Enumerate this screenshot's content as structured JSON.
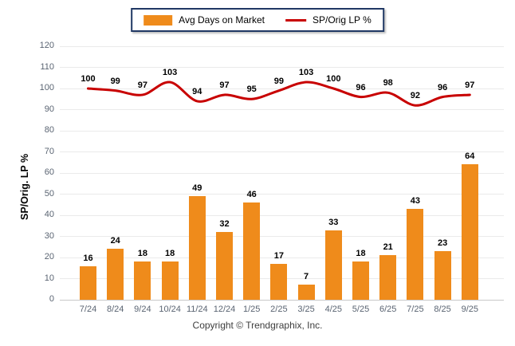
{
  "legend": {
    "bar_label": "Avg Days on Market",
    "line_label": "SP/Orig LP %"
  },
  "y_axis": {
    "title": "SP/Orig. LP %",
    "ticks": [
      0,
      10,
      20,
      30,
      40,
      50,
      60,
      70,
      80,
      90,
      100,
      110,
      120
    ]
  },
  "footer": {
    "copyright": "Copyright © Trendgraphix, Inc."
  },
  "colors": {
    "bar": "#EF8B1B",
    "line": "#C80000",
    "grid": "#EAEAEA",
    "zero_axis": "#C9C9C9",
    "tick_text": "#5A6472",
    "legend_border": "#203864"
  },
  "chart_data": {
    "type": "bar",
    "categories": [
      "7/24",
      "8/24",
      "9/24",
      "10/24",
      "11/24",
      "12/24",
      "1/25",
      "2/25",
      "3/25",
      "4/25",
      "5/25",
      "6/25",
      "7/25",
      "8/25",
      "9/25"
    ],
    "series": [
      {
        "name": "Avg Days on Market",
        "type": "bar",
        "values": [
          16,
          24,
          18,
          18,
          49,
          32,
          46,
          17,
          7,
          33,
          18,
          21,
          43,
          23,
          64
        ]
      },
      {
        "name": "SP/Orig LP %",
        "type": "line",
        "values": [
          100,
          99,
          97,
          103,
          94,
          97,
          95,
          99,
          103,
          100,
          96,
          98,
          92,
          96,
          97
        ]
      }
    ],
    "title": "",
    "xlabel": "",
    "ylabel": "SP/Orig. LP %",
    "ylim": [
      0,
      120
    ],
    "ytick_step": 10,
    "grid": true,
    "legend_position": "top-center",
    "data_labels": true
  }
}
